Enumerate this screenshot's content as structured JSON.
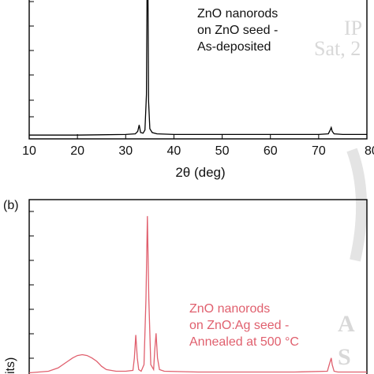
{
  "chart_data": [
    {
      "panel": "",
      "type": "line",
      "xlabel": "2θ (deg)",
      "xlim": [
        10,
        80
      ],
      "x_ticks": [
        "10",
        "20",
        "30",
        "40",
        "50",
        "60",
        "70",
        "80"
      ],
      "annotation": [
        "ZnO nanorods",
        "on ZnO seed -",
        "As-deposited"
      ],
      "series": [
        {
          "color": "#000000",
          "x": [
            10,
            20,
            30,
            32.0,
            32.5,
            32.8,
            33.1,
            33.6,
            34.0,
            34.3,
            34.45,
            34.6,
            34.75,
            35.0,
            35.5,
            36.5,
            40,
            50,
            60,
            70,
            72.0,
            72.4,
            72.6,
            72.8,
            73.2,
            75,
            80
          ],
          "y": [
            0.03,
            0.03,
            0.035,
            0.04,
            0.06,
            0.11,
            0.05,
            0.045,
            0.07,
            0.35,
            1.3,
            1.3,
            0.3,
            0.08,
            0.05,
            0.04,
            0.035,
            0.035,
            0.035,
            0.035,
            0.04,
            0.07,
            0.09,
            0.06,
            0.04,
            0.035,
            0.035
          ],
          "ylim": [
            0,
            1.1
          ]
        }
      ]
    },
    {
      "panel": "(b)",
      "type": "line",
      "ylabel": "its)",
      "xlim": [
        10,
        80
      ],
      "annotation": [
        "ZnO nanorods",
        "on ZnO:Ag seed -",
        "Annealed at 500 °C"
      ],
      "series": [
        {
          "color": "#e0606e",
          "x": [
            10,
            14,
            16,
            18,
            19,
            20,
            21,
            22,
            23,
            24,
            25,
            26,
            28,
            30,
            31.5,
            31.8,
            32.1,
            32.4,
            32.7,
            33.2,
            33.8,
            34.2,
            34.5,
            34.8,
            35.2,
            35.8,
            36.0,
            36.3,
            36.6,
            37.0,
            38,
            45,
            55,
            65,
            71.8,
            72.2,
            72.6,
            72.8,
            73.2,
            74,
            80
          ],
          "y": [
            0.05,
            0.06,
            0.08,
            0.12,
            0.14,
            0.155,
            0.16,
            0.155,
            0.14,
            0.12,
            0.09,
            0.07,
            0.06,
            0.06,
            0.065,
            0.14,
            0.28,
            0.14,
            0.07,
            0.06,
            0.1,
            0.5,
            1.0,
            0.5,
            0.1,
            0.07,
            0.18,
            0.29,
            0.14,
            0.07,
            0.06,
            0.055,
            0.055,
            0.055,
            0.06,
            0.1,
            0.14,
            0.1,
            0.06,
            0.055,
            0.055
          ],
          "ylim": [
            0,
            1.1
          ]
        }
      ]
    }
  ],
  "watermark": {
    "top": [
      "IP",
      "Sat, 2"
    ],
    "bottom": [
      "A",
      "S"
    ]
  }
}
